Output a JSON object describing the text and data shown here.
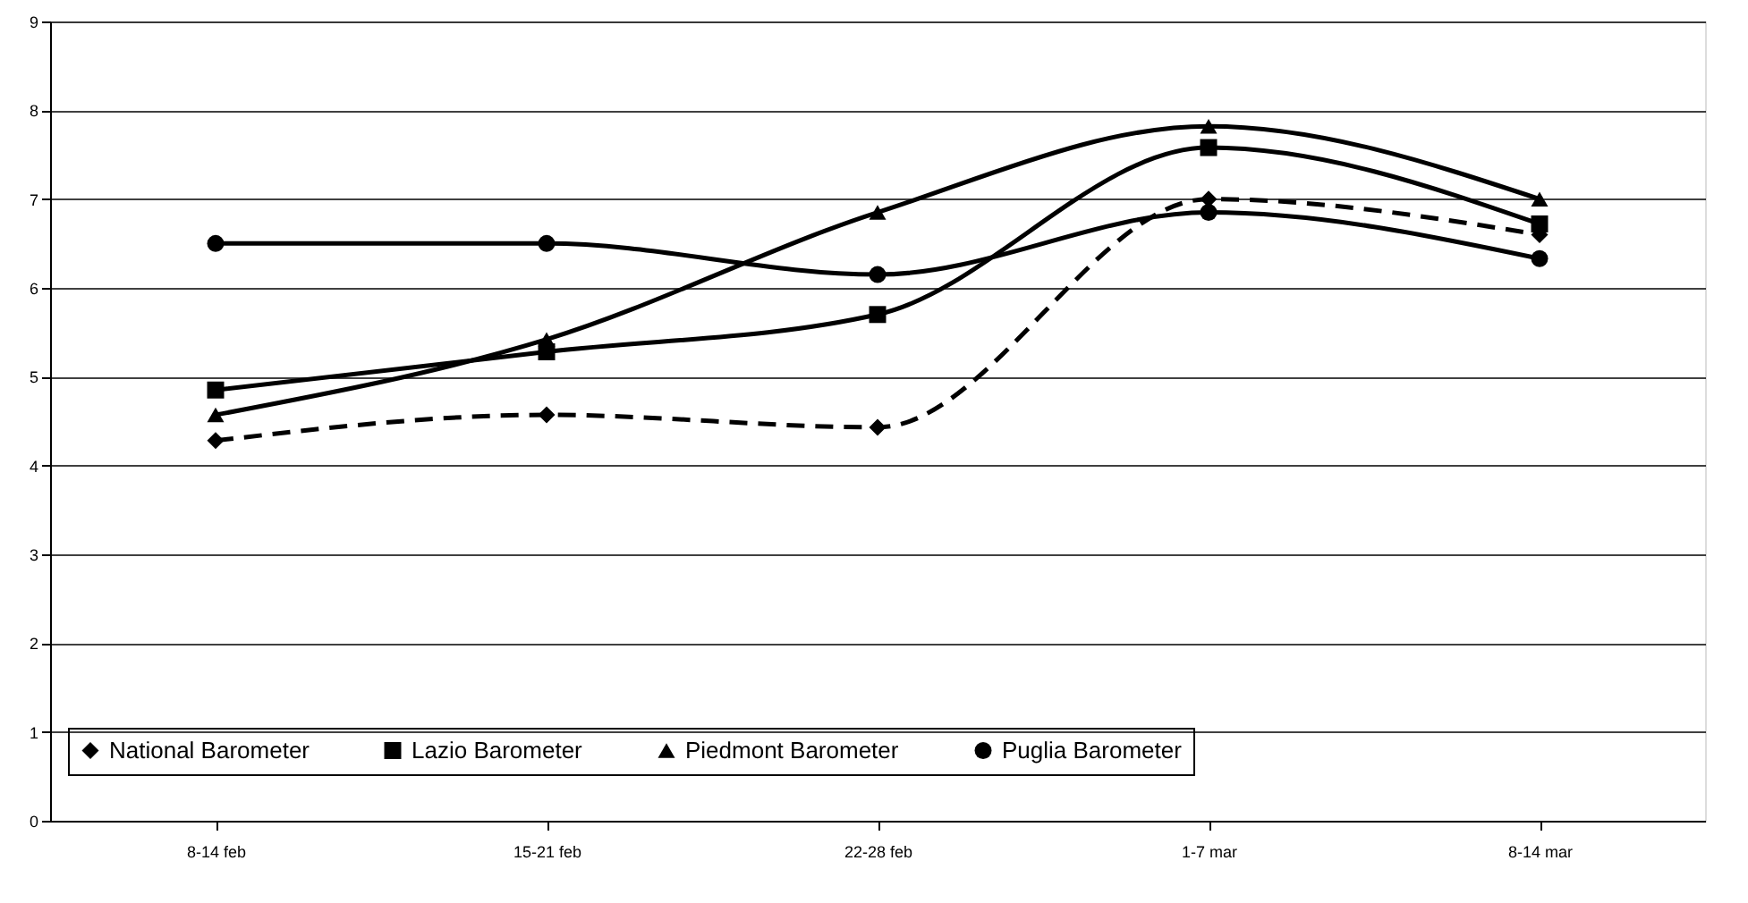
{
  "chart_data": {
    "type": "line",
    "categories": [
      "8-14 feb",
      "15-21 feb",
      "22-28 feb",
      "1-7 mar",
      "8-14 mar"
    ],
    "series": [
      {
        "name": "National Barometer",
        "color": "#000000",
        "marker": "diamond",
        "line_style": "dashed",
        "values": [
          4.28,
          4.57,
          4.43,
          7.0,
          6.6
        ]
      },
      {
        "name": "Lazio Barometer",
        "color": "#000000",
        "marker": "square",
        "line_style": "solid",
        "values": [
          4.85,
          5.28,
          5.7,
          7.58,
          6.72
        ]
      },
      {
        "name": "Piedmont Barometer",
        "color": "#000000",
        "marker": "triangle",
        "line_style": "solid",
        "values": [
          4.57,
          5.42,
          6.85,
          7.82,
          7.0
        ]
      },
      {
        "name": "Puglia Barometer",
        "color": "#000000",
        "marker": "circle",
        "line_style": "solid",
        "values": [
          6.5,
          6.5,
          6.15,
          6.85,
          6.33
        ]
      }
    ],
    "ylim": [
      0,
      9
    ],
    "yticks": [
      0,
      1,
      2,
      3,
      4,
      5,
      6,
      7,
      8,
      9
    ],
    "grid": "y",
    "legend": "bottom"
  }
}
